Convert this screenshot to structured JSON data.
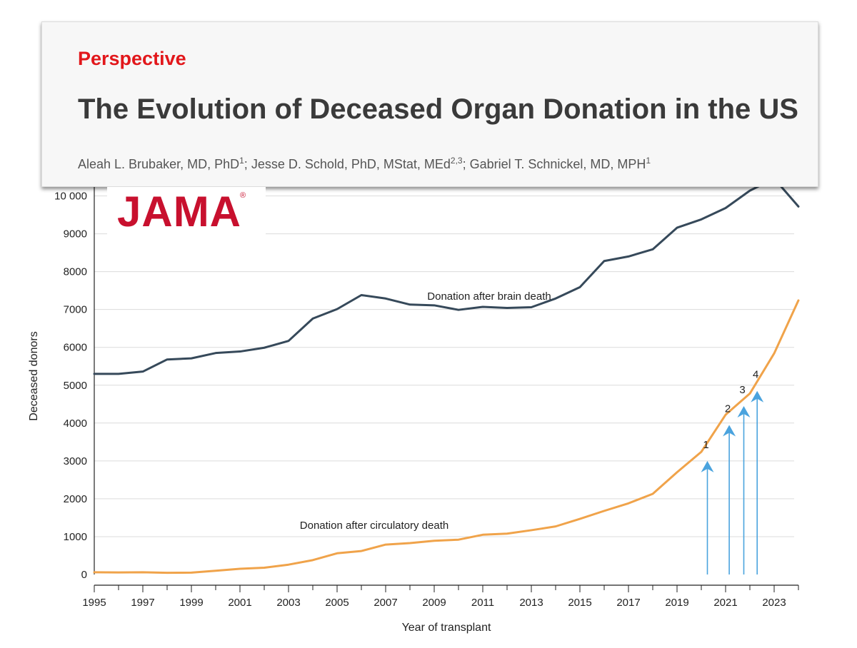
{
  "header": {
    "kicker": "Perspective",
    "title": "The Evolution of Deceased Organ Donation in the US",
    "authors": [
      {
        "name": "Aleah L. Brubaker, MD, PhD",
        "sup": "1",
        "sep": "; "
      },
      {
        "name": "Jesse D. Schold, PhD, MStat, MEd",
        "sup": "2,3",
        "sep": "; "
      },
      {
        "name": "Gabriel T. Schnickel, MD, MPH",
        "sup": "1",
        "sep": ""
      }
    ]
  },
  "logo": {
    "text": "JAMA",
    "mark": "®"
  },
  "colors": {
    "dbd": "#36495a",
    "dcd": "#f0a34a",
    "arrow": "#4aa3de",
    "grid": "#dcdcdc",
    "axis": "#222222",
    "kicker": "#e2171b",
    "logo": "#c8102e"
  },
  "chart_data": {
    "type": "line",
    "title": "",
    "xlabel": "Year of transplant",
    "ylabel": "Deceased donors",
    "xlim": [
      1995,
      2024
    ],
    "ylim": [
      0,
      10500
    ],
    "xticks": [
      1995,
      1997,
      1999,
      2001,
      2003,
      2005,
      2007,
      2009,
      2011,
      2013,
      2015,
      2017,
      2019,
      2021,
      2023
    ],
    "yticks": [
      0,
      1000,
      2000,
      3000,
      4000,
      5000,
      6000,
      7000,
      8000,
      9000,
      10000
    ],
    "ytick_labels": [
      "0",
      "1000",
      "2000",
      "3000",
      "4000",
      "5000",
      "6000",
      "7000",
      "8000",
      "9000",
      "10 000"
    ],
    "grid": true,
    "x": [
      1995,
      1996,
      1997,
      1998,
      1999,
      2000,
      2001,
      2002,
      2003,
      2004,
      2005,
      2006,
      2007,
      2008,
      2009,
      2010,
      2011,
      2012,
      2013,
      2014,
      2015,
      2016,
      2017,
      2018,
      2019,
      2020,
      2021,
      2022,
      2023,
      2024
    ],
    "series": [
      {
        "name": "Donation after brain death",
        "values": [
          5300,
          5300,
          5360,
          5680,
          5710,
          5850,
          5890,
          5990,
          6170,
          6760,
          7010,
          7380,
          7290,
          7130,
          7110,
          6990,
          7070,
          7040,
          7060,
          7290,
          7590,
          8280,
          8400,
          8590,
          9160,
          9380,
          9680,
          10140,
          10460,
          9720
        ]
      },
      {
        "name": "Donation after circulatory death",
        "values": [
          60,
          55,
          60,
          45,
          50,
          100,
          150,
          180,
          260,
          380,
          560,
          620,
          790,
          830,
          890,
          920,
          1050,
          1080,
          1170,
          1270,
          1470,
          1680,
          1880,
          2130,
          2700,
          3240,
          4220,
          4780,
          5840,
          7240
        ]
      }
    ],
    "annotations": [
      {
        "label": "1",
        "x": 2020.25,
        "y_top": 3000
      },
      {
        "label": "2",
        "x": 2021.15,
        "y_top": 3950
      },
      {
        "label": "3",
        "x": 2021.75,
        "y_top": 4450
      },
      {
        "label": "4",
        "x": 2022.3,
        "y_top": 4850
      }
    ]
  }
}
